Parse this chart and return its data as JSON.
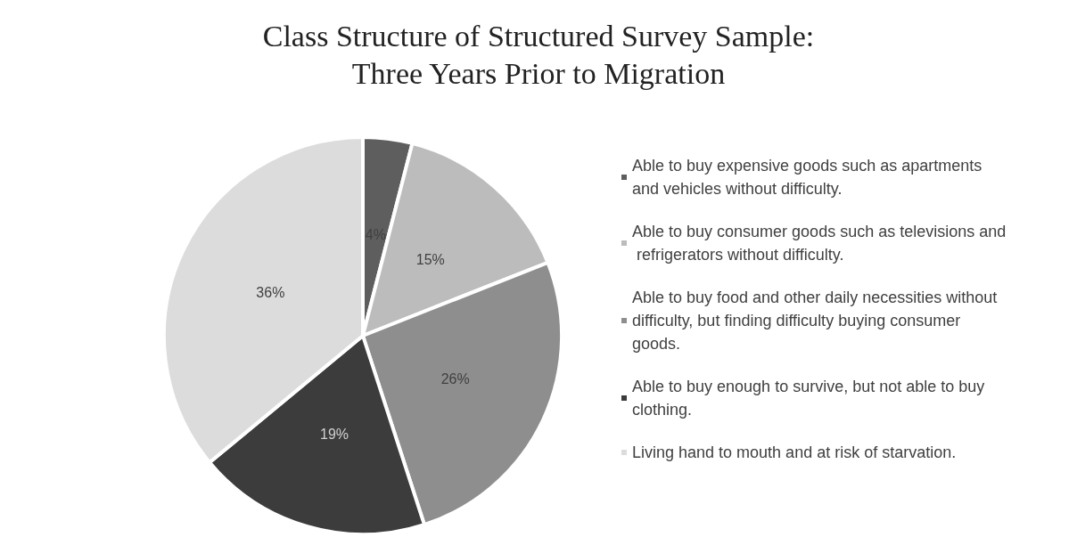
{
  "chart_data": {
    "type": "pie",
    "title": "Class Structure of Structured Survey Sample:\nThree Years Prior to Migration",
    "categories": [
      "Able to buy expensive goods such as apartments and vehicles without difficulty.",
      "Able to buy consumer goods such as televisions and refrigerators without difficulty.",
      "Able to buy food and other daily necessities without difficulty, but finding difficulty buying consumer goods.",
      "Able to buy enough to survive, but not able to buy clothing.",
      "Living hand to mouth and at risk of starvation."
    ],
    "values": [
      4,
      15,
      26,
      19,
      36
    ],
    "colors": [
      "#5e5e5e",
      "#bcbcbc",
      "#8e8e8e",
      "#3c3c3c",
      "#dcdcdc"
    ],
    "value_labels": [
      "4%",
      "15%",
      "26%",
      "19%",
      "36%"
    ],
    "legend": "right"
  }
}
